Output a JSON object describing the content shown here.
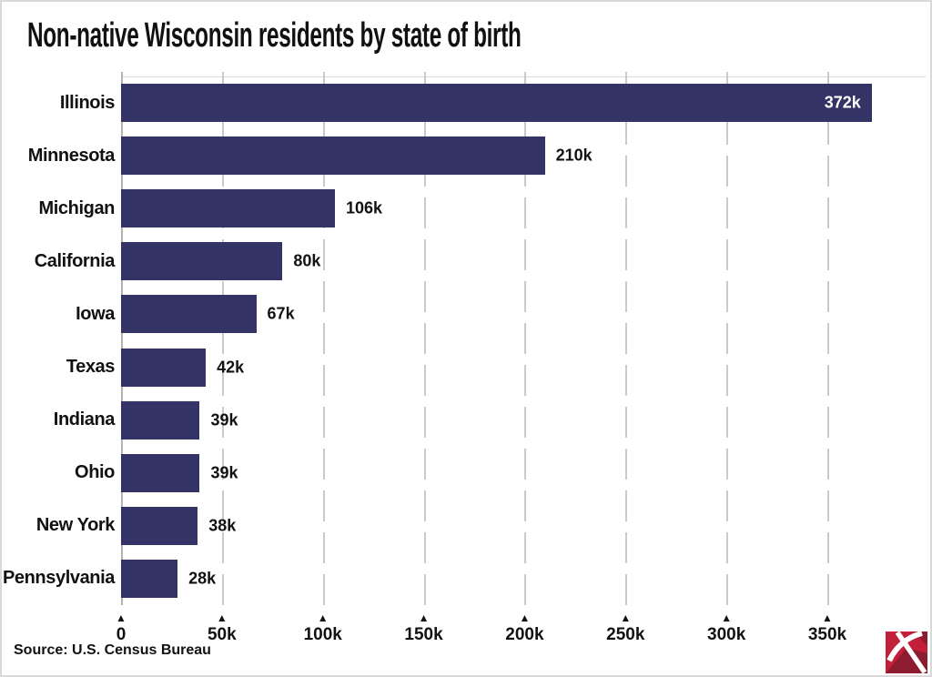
{
  "header": {
    "title": "Non-native Wisconsin residents by state of birth"
  },
  "footer": {
    "source": "Source: U.S. Census Bureau",
    "logo": "red-pickaxe-logo"
  },
  "colors": {
    "bar": "#333366",
    "grid": "#c9c9c9",
    "axis": "#b3b3b3",
    "plot_top": "#d9d9e4",
    "text": "#111111",
    "value_inside": "#ffffff",
    "logo_red": "#c41f3a",
    "logo_dark": "#8e1c30",
    "card_border": "#d9d9d9"
  },
  "chart_data": {
    "type": "bar",
    "orientation": "horizontal",
    "title": "Non-native Wisconsin residents by state of birth",
    "categories": [
      "Illinois",
      "Minnesota",
      "Michigan",
      "California",
      "Iowa",
      "Texas",
      "Indiana",
      "Ohio",
      "New York",
      "Pennsylvania"
    ],
    "values": [
      372,
      210,
      106,
      80,
      67,
      42,
      39,
      39,
      38,
      28
    ],
    "value_unit": "thousands",
    "value_labels": [
      "372k",
      "210k",
      "106k",
      "80k",
      "67k",
      "42k",
      "39k",
      "39k",
      "38k",
      "28k"
    ],
    "value_label_inside": [
      true,
      false,
      false,
      false,
      false,
      false,
      false,
      false,
      false,
      false
    ],
    "x_ticks": [
      {
        "value": 0,
        "label": "0"
      },
      {
        "value": 50,
        "label": "50k"
      },
      {
        "value": 100,
        "label": "100k"
      },
      {
        "value": 150,
        "label": "150k"
      },
      {
        "value": 200,
        "label": "200k"
      },
      {
        "value": 250,
        "label": "250k"
      },
      {
        "value": 300,
        "label": "300k"
      },
      {
        "value": 350,
        "label": "350k"
      }
    ],
    "xlim": [
      0,
      398
    ],
    "grid": "vertical-dashed",
    "legend": "none",
    "tick_marker": "▲",
    "source": "Source: U.S. Census Bureau"
  }
}
